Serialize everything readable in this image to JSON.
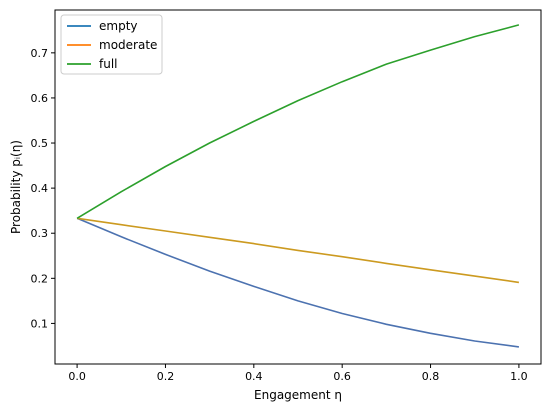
{
  "chart_data": {
    "type": "line",
    "xlabel": "Engagement η",
    "ylabel": "Probability pᵢ(η)",
    "xlim": [
      -0.05,
      1.05
    ],
    "ylim": [
      0.01,
      0.795
    ],
    "x_ticks": [
      "0.0",
      "0.2",
      "0.4",
      "0.6",
      "0.8",
      "1.0"
    ],
    "y_ticks": [
      "0.1",
      "0.2",
      "0.3",
      "0.4",
      "0.5",
      "0.6",
      "0.7"
    ],
    "grid": false,
    "legend_position": "top-left",
    "x": [
      0.0,
      0.1,
      0.2,
      0.3,
      0.4,
      0.5,
      0.6,
      0.7,
      0.8,
      0.9,
      1.0
    ],
    "series": [
      {
        "name": "empty",
        "color": "#4c72b0",
        "legend_color": "#1f77b4",
        "values": [
          0.333,
          0.292,
          0.253,
          0.216,
          0.182,
          0.15,
          0.122,
          0.098,
          0.078,
          0.061,
          0.048
        ]
      },
      {
        "name": "moderate",
        "color": "#cc9a20",
        "legend_color": "#ff7f0e",
        "values": [
          0.333,
          0.319,
          0.305,
          0.291,
          0.277,
          0.262,
          0.248,
          0.233,
          0.219,
          0.205,
          0.191
        ]
      },
      {
        "name": "full",
        "color": "#2ca02c",
        "legend_color": "#2ca02c",
        "values": [
          0.333,
          0.392,
          0.448,
          0.5,
          0.548,
          0.594,
          0.636,
          0.675,
          0.706,
          0.736,
          0.762
        ]
      }
    ]
  }
}
